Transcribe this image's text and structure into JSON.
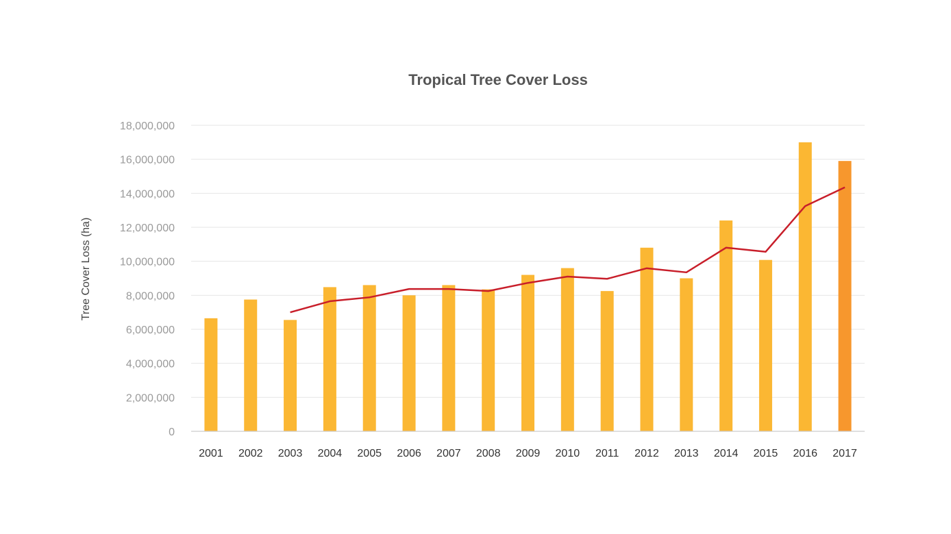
{
  "chart_data": {
    "type": "bar",
    "title": "Tropical Tree Cover Loss",
    "xlabel": "",
    "ylabel": "Tree Cover Loss (ha)",
    "ylim": [
      0,
      18000000
    ],
    "yticks": [
      0,
      2000000,
      4000000,
      6000000,
      8000000,
      10000000,
      12000000,
      14000000,
      16000000,
      18000000
    ],
    "ytick_labels": [
      "0",
      "2,000,000",
      "4,000,000",
      "6,000,000",
      "8,000,000",
      "10,000,000",
      "12,000,000",
      "14,000,000",
      "16,000,000",
      "18,000,000"
    ],
    "grid": true,
    "legend": "none",
    "categories": [
      "2001",
      "2002",
      "2003",
      "2004",
      "2005",
      "2006",
      "2007",
      "2008",
      "2009",
      "2010",
      "2011",
      "2012",
      "2013",
      "2014",
      "2015",
      "2016",
      "2017"
    ],
    "series": [
      {
        "type": "bar",
        "values": [
          6650000,
          7750000,
          6550000,
          8480000,
          8600000,
          8000000,
          8600000,
          8350000,
          9200000,
          9600000,
          8250000,
          10800000,
          9000000,
          12400000,
          10080000,
          17000000,
          15900000
        ],
        "color": "#FBB733",
        "highlight_color": "#F7972D",
        "highlight_index": 16
      },
      {
        "type": "line",
        "values": [
          null,
          null,
          7000000,
          7650000,
          7880000,
          8370000,
          8370000,
          8250000,
          8730000,
          9100000,
          8970000,
          9590000,
          9350000,
          10800000,
          10560000,
          13250000,
          14350000
        ],
        "color": "#C81E2A"
      }
    ]
  }
}
